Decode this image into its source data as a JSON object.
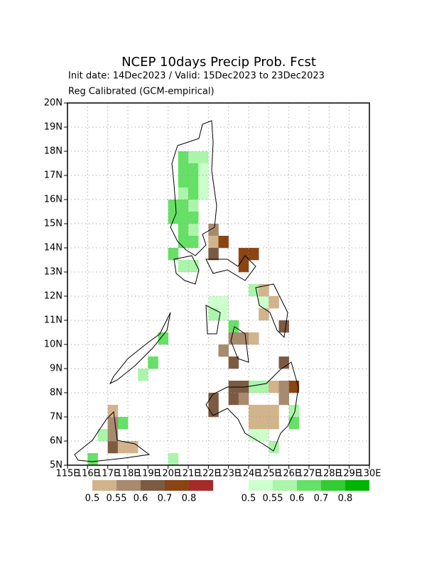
{
  "map": {
    "title": "NCEP 10days Precip Prob. Fcst",
    "subtitle": "Init date: 14Dec2023 / Valid: 15Dec2023 to 23Dec2023",
    "note": "Reg Calibrated (GCM-empirical)",
    "lonlim": [
      115,
      130
    ],
    "latlim": [
      5,
      20
    ],
    "cell_size": 0.5,
    "lon_ticks": [
      {
        "value": 115,
        "label": "115E"
      },
      {
        "value": 116,
        "label": "116E"
      },
      {
        "value": 117,
        "label": "117E"
      },
      {
        "value": 118,
        "label": "118E"
      },
      {
        "value": 119,
        "label": "119E"
      },
      {
        "value": 120,
        "label": "120E"
      },
      {
        "value": 121,
        "label": "121E"
      },
      {
        "value": 122,
        "label": "122E"
      },
      {
        "value": 123,
        "label": "123E"
      },
      {
        "value": 124,
        "label": "124E"
      },
      {
        "value": 125,
        "label": "125E"
      },
      {
        "value": 126,
        "label": "126E"
      },
      {
        "value": 127,
        "label": "127E"
      },
      {
        "value": 128,
        "label": "128E"
      },
      {
        "value": 129,
        "label": "129E"
      },
      {
        "value": 130,
        "label": "130E"
      }
    ],
    "lat_ticks": [
      {
        "value": 5,
        "label": "5N"
      },
      {
        "value": 6,
        "label": "6N"
      },
      {
        "value": 7,
        "label": "7N"
      },
      {
        "value": 8,
        "label": "8N"
      },
      {
        "value": 9,
        "label": "9N"
      },
      {
        "value": 10,
        "label": "10N"
      },
      {
        "value": 11,
        "label": "11N"
      },
      {
        "value": 12,
        "label": "12N"
      },
      {
        "value": 13,
        "label": "13N"
      },
      {
        "value": 14,
        "label": "14N"
      },
      {
        "value": 15,
        "label": "15N"
      },
      {
        "value": 16,
        "label": "16N"
      },
      {
        "value": 17,
        "label": "17N"
      },
      {
        "value": 18,
        "label": "18N"
      },
      {
        "value": 19,
        "label": "19N"
      },
      {
        "value": 20,
        "label": "20N"
      }
    ],
    "brown_legend": {
      "colors": [
        "#d2b48c",
        "#a88a6e",
        "#7d5b43",
        "#8b4513",
        "#a52a2a"
      ],
      "labels": [
        0.5,
        0.55,
        0.6,
        0.7,
        0.8
      ]
    },
    "green_legend": {
      "colors": [
        "#ccffcc",
        "#aaf5aa",
        "#66e066",
        "#33cc33",
        "#00b400"
      ],
      "labels": [
        0.5,
        0.55,
        0.6,
        0.7,
        0.8
      ]
    },
    "green_cells": [
      [
        120.5,
        17.5,
        2
      ],
      [
        121,
        17.5,
        1
      ],
      [
        121.5,
        17.5,
        1
      ],
      [
        120.5,
        17,
        2
      ],
      [
        121,
        17,
        2
      ],
      [
        121.5,
        17,
        0
      ],
      [
        120.5,
        16.5,
        2
      ],
      [
        121,
        16.5,
        2
      ],
      [
        121.5,
        16.5,
        0
      ],
      [
        120.5,
        16,
        1
      ],
      [
        121,
        16,
        2
      ],
      [
        121.5,
        16,
        0
      ],
      [
        120,
        15.5,
        2
      ],
      [
        120.5,
        15.5,
        2
      ],
      [
        121,
        15.5,
        1
      ],
      [
        120,
        15,
        2
      ],
      [
        120.5,
        15,
        2
      ],
      [
        121,
        15,
        2
      ],
      [
        120.5,
        14.5,
        2
      ],
      [
        121,
        14.5,
        1
      ],
      [
        120.5,
        14,
        2
      ],
      [
        121,
        14,
        2
      ],
      [
        120,
        13.5,
        2
      ],
      [
        120.5,
        13,
        1
      ],
      [
        121,
        13,
        1
      ],
      [
        122,
        11.5,
        0
      ],
      [
        122.5,
        11.5,
        0
      ],
      [
        122,
        11,
        1
      ],
      [
        122.5,
        11,
        0
      ],
      [
        123,
        10.5,
        2
      ],
      [
        124.5,
        11.5,
        0
      ],
      [
        124,
        12,
        1
      ],
      [
        119.5,
        10,
        2
      ],
      [
        119,
        9,
        2
      ],
      [
        118.5,
        8.5,
        1
      ],
      [
        117.5,
        6.5,
        2
      ],
      [
        117,
        6,
        1
      ],
      [
        116.5,
        6,
        1
      ],
      [
        116,
        5,
        2
      ],
      [
        120,
        5,
        1
      ],
      [
        124,
        8,
        1
      ],
      [
        124.5,
        8,
        1
      ],
      [
        124,
        6,
        0
      ],
      [
        124.5,
        6,
        0
      ],
      [
        125,
        5.5,
        1
      ],
      [
        125,
        6.5,
        0
      ],
      [
        126,
        6.5,
        2
      ],
      [
        126,
        7,
        1
      ]
    ],
    "brown_cells": [
      [
        122,
        14.5,
        1
      ],
      [
        122,
        14,
        0
      ],
      [
        122.5,
        14,
        3
      ],
      [
        122,
        13.5,
        2
      ],
      [
        123.5,
        13.5,
        3
      ],
      [
        124,
        13.5,
        3
      ],
      [
        123.5,
        13,
        3
      ],
      [
        124.5,
        12,
        0
      ],
      [
        125,
        11.5,
        0
      ],
      [
        124.5,
        11,
        0
      ],
      [
        125.5,
        10.5,
        2
      ],
      [
        123,
        10,
        1
      ],
      [
        123.5,
        10,
        1
      ],
      [
        124,
        10,
        0
      ],
      [
        122.5,
        9.5,
        1
      ],
      [
        123,
        9,
        2
      ],
      [
        125.5,
        9,
        2
      ],
      [
        123,
        8,
        2
      ],
      [
        123.5,
        8,
        2
      ],
      [
        125,
        8,
        0
      ],
      [
        125.5,
        8,
        1
      ],
      [
        126,
        8,
        3
      ],
      [
        122,
        7,
        2
      ],
      [
        122,
        7.5,
        2
      ],
      [
        123,
        7.5,
        2
      ],
      [
        123.5,
        7.5,
        1
      ],
      [
        124,
        7,
        0
      ],
      [
        124.5,
        7,
        0
      ],
      [
        125,
        7,
        0
      ],
      [
        125.5,
        7.5,
        1
      ],
      [
        124,
        6.5,
        0
      ],
      [
        124.5,
        6.5,
        0
      ],
      [
        125,
        6.5,
        0
      ],
      [
        117,
        6.5,
        1
      ],
      [
        117,
        7,
        0
      ],
      [
        117,
        5.5,
        2
      ],
      [
        117.5,
        5.5,
        0
      ],
      [
        118,
        5.5,
        0
      ],
      [
        117,
        6,
        1
      ]
    ]
  }
}
